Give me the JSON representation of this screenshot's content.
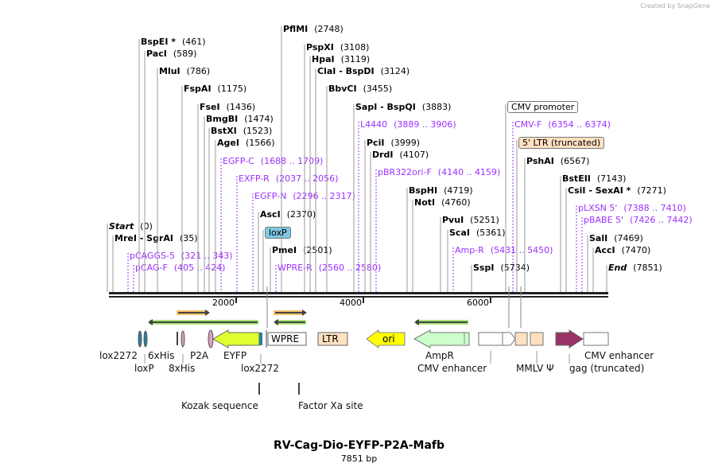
{
  "credit": "Created by SnapGene",
  "title": "RV-Cag-Dio-EYFP-P2A-Mafb",
  "length": "7851 bp",
  "sites": [
    {
      "name": "BspEI *",
      "pos": "(461)"
    },
    {
      "name": "PacI",
      "pos": "(589)"
    },
    {
      "name": "MluI",
      "pos": "(786)"
    },
    {
      "name": "FspAI",
      "pos": "(1175)"
    },
    {
      "name": "FseI",
      "pos": "(1436)"
    },
    {
      "name": "BmgBI",
      "pos": "(1474)"
    },
    {
      "name": "BstXI",
      "pos": "(1523)"
    },
    {
      "name": "AgeI",
      "pos": "(1566)"
    },
    {
      "name": "EGFP-C",
      "pos": "(1688 .. 1709)",
      "type": "primer"
    },
    {
      "name": "EXFP-R",
      "pos": "(2037 .. 2056)",
      "type": "primer"
    },
    {
      "name": "EGFP-N",
      "pos": "(2296 .. 2317)",
      "type": "primer"
    },
    {
      "name": "AscI",
      "pos": "(2370)"
    },
    {
      "name": "loxP",
      "pos": "",
      "type": "feature",
      "color": "#7ec8e3"
    },
    {
      "name": "PmeI",
      "pos": "(2501)"
    },
    {
      "name": "WPRE-R",
      "pos": "(2560 .. 2580)",
      "type": "primer"
    },
    {
      "name": "PflMI",
      "pos": "(2748)"
    },
    {
      "name": "PspXI",
      "pos": "(3108)"
    },
    {
      "name": "HpaI",
      "pos": "(3119)"
    },
    {
      "name": "ClaI  -  BspDI",
      "pos": "(3124)"
    },
    {
      "name": "BbvCI",
      "pos": "(3455)"
    },
    {
      "name": "SapI  -  BspQI",
      "pos": "(3883)"
    },
    {
      "name": "L4440",
      "pos": "(3889 .. 3906)",
      "type": "primer"
    },
    {
      "name": "PciI",
      "pos": "(3999)"
    },
    {
      "name": "DrdI",
      "pos": "(4107)"
    },
    {
      "name": "pBR322ori-F",
      "pos": "(4140 .. 4159)",
      "type": "primer"
    },
    {
      "name": "BspHI",
      "pos": "(4719)"
    },
    {
      "name": "NotI",
      "pos": "(4760)"
    },
    {
      "name": "PvuI",
      "pos": "(5251)"
    },
    {
      "name": "ScaI",
      "pos": "(5361)"
    },
    {
      "name": "Amp-R",
      "pos": "(5431 .. 5450)",
      "type": "primer"
    },
    {
      "name": "SspI",
      "pos": "(5734)"
    },
    {
      "name": "CMV promoter",
      "pos": "",
      "type": "feature",
      "color": "#ffffff"
    },
    {
      "name": "CMV-F",
      "pos": "(6354 .. 6374)",
      "type": "primer"
    },
    {
      "name": "5' LTR (truncated)",
      "pos": "",
      "type": "feature",
      "color": "#ffe0c0"
    },
    {
      "name": "PshAI",
      "pos": "(6567)"
    },
    {
      "name": "BstEII",
      "pos": "(7143)"
    },
    {
      "name": "CsiI  -  SexAI *",
      "pos": "(7271)"
    },
    {
      "name": "pLXSN 5'",
      "pos": "(7388 .. 7410)",
      "type": "primer"
    },
    {
      "name": "pBABE 5'",
      "pos": "(7426 .. 7442)",
      "type": "primer"
    },
    {
      "name": "SalI",
      "pos": "(7469)"
    },
    {
      "name": "AccI",
      "pos": "(7470)"
    },
    {
      "name": "End",
      "pos": "(7851)",
      "italic": true
    },
    {
      "name": "Start",
      "pos": "(0)",
      "italic": true
    },
    {
      "name": "MreI  -  SgrAI",
      "pos": "(35)"
    },
    {
      "name": "pCAGGS-5",
      "pos": "(321 .. 343)",
      "type": "primer"
    },
    {
      "name": "pCAG-F",
      "pos": "(405 .. 424)",
      "type": "primer"
    }
  ],
  "ticks": [
    "2000",
    "4000",
    "6000"
  ],
  "features": {
    "wpre": "WPRE",
    "ltr": "LTR",
    "ori": "ori",
    "labels": [
      "lox2272",
      "6xHis",
      "P2A",
      "EYFP",
      "loxP",
      "8xHis",
      "lox2272",
      "AmpR",
      "CMV enhancer",
      "MMLV Ψ",
      "CMV enhancer",
      "gag (truncated)",
      "Kozak sequence",
      "Factor Xa site"
    ]
  },
  "colors": {
    "eyfp": "#e0ff30",
    "ori": "#ffff00",
    "ampr": "#ccffcc",
    "ltr": "#ffe0c0",
    "gag": "#993366",
    "primer": "#9b30ff",
    "lox": "#2a7f9e"
  }
}
